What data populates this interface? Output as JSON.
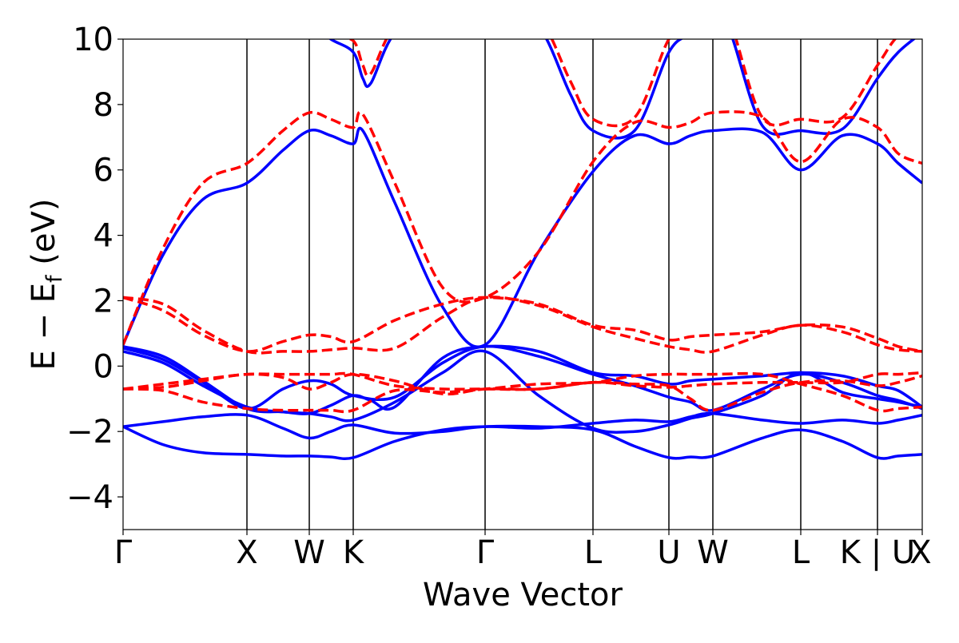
{
  "chart_data": {
    "type": "line",
    "title": "",
    "xlabel": "Wave Vector",
    "ylabel": "E − E",
    "ylabel_sub": "f",
    "ylabel_unit": " (eV)",
    "ylim": [
      -5,
      10
    ],
    "yticks": [
      -4,
      -2,
      0,
      2,
      4,
      6,
      8,
      10
    ],
    "ytick_labels": [
      "−4",
      "−2",
      "0",
      "2",
      "4",
      "6",
      "8",
      "10"
    ],
    "xlim": [
      0,
      1
    ],
    "kpoints": [
      {
        "label": "Γ",
        "x": 0.0
      },
      {
        "label": "X",
        "x": 0.155
      },
      {
        "label": "W",
        "x": 0.233
      },
      {
        "label": "K",
        "x": 0.288
      },
      {
        "label": "Γ",
        "x": 0.453
      },
      {
        "label": "L",
        "x": 0.588
      },
      {
        "label": "U",
        "x": 0.683
      },
      {
        "label": "W",
        "x": 0.738
      },
      {
        "label": "L",
        "x": 0.848
      },
      {
        "label": "K | U",
        "x": 0.944
      },
      {
        "label": "X",
        "x": 1.0
      }
    ],
    "grid": false,
    "legend": "none",
    "series": [
      {
        "style": "solid",
        "color": "#0000ff",
        "bands": [
          {
            "x": [
              0,
              0.05,
              0.1,
              0.155,
              0.2,
              0.233,
              0.26,
              0.288,
              0.34,
              0.4,
              0.453,
              0.52,
              0.588,
              0.64,
              0.683,
              0.71,
              0.738,
              0.8,
              0.848,
              0.9,
              0.944,
              0.97,
              1.0
            ],
            "y": [
              -1.85,
              -1.7,
              -1.55,
              -1.5,
              -1.9,
              -2.2,
              -2.0,
              -1.8,
              -2.05,
              -2.0,
              -1.85,
              -1.9,
              -1.75,
              -1.65,
              -1.7,
              -1.55,
              -1.45,
              -1.65,
              -1.75,
              -1.65,
              -1.75,
              -1.65,
              -1.5
            ]
          },
          {
            "x": [
              0,
              0.05,
              0.1,
              0.155,
              0.2,
              0.233,
              0.26,
              0.288,
              0.34,
              0.4,
              0.453,
              0.52,
              0.588,
              0.64,
              0.683,
              0.71,
              0.738,
              0.8,
              0.848,
              0.9,
              0.944,
              0.97,
              1.0
            ],
            "y": [
              -1.85,
              -2.4,
              -2.65,
              -2.7,
              -2.75,
              -2.75,
              -2.78,
              -2.8,
              -2.3,
              -1.95,
              -1.85,
              -1.85,
              -1.95,
              -2.45,
              -2.8,
              -2.78,
              -2.75,
              -2.2,
              -1.95,
              -2.3,
              -2.8,
              -2.75,
              -2.7
            ]
          },
          {
            "x": [
              0,
              0.05,
              0.1,
              0.155,
              0.2,
              0.233,
              0.26,
              0.288,
              0.34,
              0.4,
              0.453,
              0.52,
              0.588,
              0.64,
              0.683,
              0.71,
              0.738,
              0.8,
              0.848,
              0.9,
              0.944,
              0.97,
              1.0
            ],
            "y": [
              0.45,
              0.1,
              -0.6,
              -1.25,
              -1.4,
              -1.45,
              -1.55,
              -1.65,
              -1.1,
              -0.2,
              0.45,
              -0.9,
              -1.9,
              -2.0,
              -1.8,
              -1.6,
              -1.45,
              -0.9,
              -0.2,
              -0.8,
              -1.0,
              -1.1,
              -1.25
            ]
          },
          {
            "x": [
              0,
              0.05,
              0.1,
              0.155,
              0.2,
              0.233,
              0.26,
              0.288,
              0.34,
              0.4,
              0.453,
              0.52,
              0.588,
              0.64,
              0.683,
              0.71,
              0.738,
              0.8,
              0.848,
              0.9,
              0.944,
              0.97,
              1.0
            ],
            "y": [
              0.55,
              0.2,
              -0.5,
              -1.3,
              -0.7,
              -0.45,
              -0.55,
              -0.9,
              -0.95,
              0.1,
              0.6,
              0.3,
              -0.25,
              -0.6,
              -0.95,
              -1.1,
              -1.35,
              -0.7,
              -0.25,
              -0.5,
              -0.9,
              -1.05,
              -1.3
            ]
          },
          {
            "x": [
              0,
              0.05,
              0.1,
              0.155,
              0.2,
              0.233,
              0.26,
              0.288,
              0.31,
              0.34,
              0.4,
              0.453,
              0.52,
              0.588,
              0.64,
              0.683,
              0.71,
              0.738,
              0.8,
              0.848,
              0.9,
              0.944,
              0.97,
              1.0
            ],
            "y": [
              0.6,
              0.3,
              -0.45,
              -1.3,
              -1.4,
              -1.45,
              -1.2,
              -0.9,
              -1.05,
              -1.25,
              0.25,
              0.6,
              0.45,
              -0.2,
              -0.3,
              -0.55,
              -0.45,
              -0.4,
              -0.3,
              -0.2,
              -0.3,
              -0.6,
              -0.75,
              -1.25
            ]
          },
          {
            "x": [
              0,
              0.05,
              0.1,
              0.155,
              0.2,
              0.233,
              0.26,
              0.288,
              0.3,
              0.34,
              0.4,
              0.453,
              0.52,
              0.588,
              0.64,
              0.683,
              0.71,
              0.738,
              0.8,
              0.848,
              0.9,
              0.944,
              0.97,
              1.0
            ],
            "y": [
              0.65,
              3.4,
              5.1,
              5.6,
              6.6,
              7.2,
              7.05,
              6.8,
              7.2,
              5.0,
              1.8,
              0.65,
              3.5,
              5.95,
              7.05,
              6.8,
              7.05,
              7.2,
              7.15,
              6.0,
              7.05,
              6.8,
              6.2,
              5.6
            ]
          },
          {
            "x": [
              0.2,
              0.233,
              0.26,
              0.288,
              0.3,
              0.31,
              0.34,
              0.4,
              0.453,
              0.5,
              0.53,
              0.56,
              0.588,
              0.64,
              0.683,
              0.71,
              0.738,
              0.76,
              0.8,
              0.848,
              0.9,
              0.944,
              0.97,
              1.0
            ],
            "y": [
              11,
              10.5,
              10.0,
              9.6,
              8.8,
              8.65,
              10.2,
              11.5,
              11.5,
              11.0,
              10.0,
              8.3,
              7.2,
              7.2,
              9.6,
              10.2,
              11.0,
              10.2,
              7.35,
              7.2,
              7.25,
              8.8,
              9.6,
              10.2
            ]
          }
        ]
      },
      {
        "style": "dashed",
        "color": "#ff0000",
        "bands": [
          {
            "x": [
              0,
              0.05,
              0.1,
              0.155,
              0.2,
              0.233,
              0.26,
              0.288,
              0.34,
              0.4,
              0.453,
              0.52,
              0.588,
              0.64,
              0.683,
              0.71,
              0.738,
              0.8,
              0.848,
              0.9,
              0.944,
              0.97,
              1.0
            ],
            "y": [
              -0.7,
              -0.55,
              -0.4,
              -0.25,
              -0.25,
              -0.25,
              -0.25,
              -0.25,
              -0.6,
              -0.7,
              -0.7,
              -0.7,
              -0.5,
              -0.6,
              -0.65,
              -0.6,
              -0.55,
              -0.5,
              -0.5,
              -0.5,
              -0.25,
              -0.25,
              -0.2
            ]
          },
          {
            "x": [
              0,
              0.05,
              0.1,
              0.155,
              0.2,
              0.233,
              0.26,
              0.288,
              0.34,
              0.4,
              0.453,
              0.52,
              0.588,
              0.64,
              0.683,
              0.71,
              0.738,
              0.8,
              0.848,
              0.9,
              0.944,
              0.97,
              1.0
            ],
            "y": [
              -0.7,
              -0.75,
              -1.1,
              -1.3,
              -1.35,
              -1.35,
              -1.35,
              -1.35,
              -0.75,
              -0.8,
              -0.7,
              -0.55,
              -0.5,
              -0.3,
              -0.25,
              -0.25,
              -0.25,
              -0.25,
              -0.55,
              -0.9,
              -1.35,
              -1.3,
              -1.25
            ]
          },
          {
            "x": [
              0,
              0.05,
              0.1,
              0.155,
              0.2,
              0.233,
              0.26,
              0.288,
              0.34,
              0.4,
              0.453,
              0.52,
              0.588,
              0.64,
              0.683,
              0.71,
              0.738,
              0.8,
              0.848,
              0.9,
              0.944,
              0.97,
              1.0
            ],
            "y": [
              -0.7,
              -0.65,
              -0.45,
              -0.25,
              -0.35,
              -0.7,
              -0.5,
              -0.25,
              -0.45,
              -0.85,
              -0.7,
              -0.7,
              -0.5,
              -0.55,
              -0.6,
              -1.0,
              -1.35,
              -0.8,
              -0.5,
              -0.45,
              -0.6,
              -0.5,
              -0.3
            ]
          },
          {
            "x": [
              0,
              0.05,
              0.1,
              0.155,
              0.2,
              0.233,
              0.26,
              0.288,
              0.34,
              0.4,
              0.453,
              0.52,
              0.588,
              0.64,
              0.683,
              0.71,
              0.738,
              0.8,
              0.848,
              0.9,
              0.944,
              0.97,
              1.0
            ],
            "y": [
              2.1,
              1.9,
              1.1,
              0.45,
              0.45,
              0.45,
              0.5,
              0.55,
              0.55,
              1.5,
              2.1,
              1.85,
              1.2,
              0.85,
              0.6,
              0.5,
              0.45,
              0.95,
              1.25,
              1.05,
              0.65,
              0.5,
              0.45
            ]
          },
          {
            "x": [
              0,
              0.05,
              0.1,
              0.155,
              0.2,
              0.233,
              0.26,
              0.288,
              0.34,
              0.4,
              0.453,
              0.52,
              0.588,
              0.64,
              0.683,
              0.71,
              0.738,
              0.8,
              0.848,
              0.9,
              0.944,
              0.97,
              1.0
            ],
            "y": [
              2.1,
              1.7,
              0.95,
              0.45,
              0.75,
              0.95,
              0.9,
              0.75,
              1.4,
              1.9,
              2.1,
              1.9,
              1.25,
              1.1,
              0.8,
              0.9,
              0.95,
              1.05,
              1.25,
              1.2,
              0.85,
              0.6,
              0.45
            ]
          },
          {
            "x": [
              0,
              0.05,
              0.1,
              0.155,
              0.2,
              0.233,
              0.26,
              0.288,
              0.3,
              0.34,
              0.4,
              0.453,
              0.52,
              0.588,
              0.64,
              0.683,
              0.71,
              0.738,
              0.8,
              0.848,
              0.9,
              0.944,
              0.97,
              1.0
            ],
            "y": [
              0.65,
              3.6,
              5.6,
              6.2,
              7.2,
              7.75,
              7.55,
              7.3,
              7.7,
              5.6,
              2.4,
              2.1,
              3.5,
              6.25,
              7.45,
              7.3,
              7.45,
              7.75,
              7.6,
              6.25,
              7.55,
              7.3,
              6.5,
              6.2
            ]
          },
          {
            "x": [
              0.2,
              0.233,
              0.26,
              0.288,
              0.3,
              0.31,
              0.34,
              0.4,
              0.453,
              0.5,
              0.53,
              0.56,
              0.588,
              0.64,
              0.683,
              0.71,
              0.738,
              0.76,
              0.8,
              0.848,
              0.9,
              0.944,
              0.97,
              1.0
            ],
            "y": [
              11,
              10.6,
              10.1,
              9.95,
              9.2,
              8.95,
              10.4,
              11.5,
              11.5,
              11.0,
              10.3,
              8.7,
              7.55,
              7.6,
              10.0,
              10.4,
              11.0,
              10.5,
              7.6,
              7.55,
              7.6,
              9.2,
              10.1,
              10.4
            ]
          }
        ]
      }
    ]
  }
}
